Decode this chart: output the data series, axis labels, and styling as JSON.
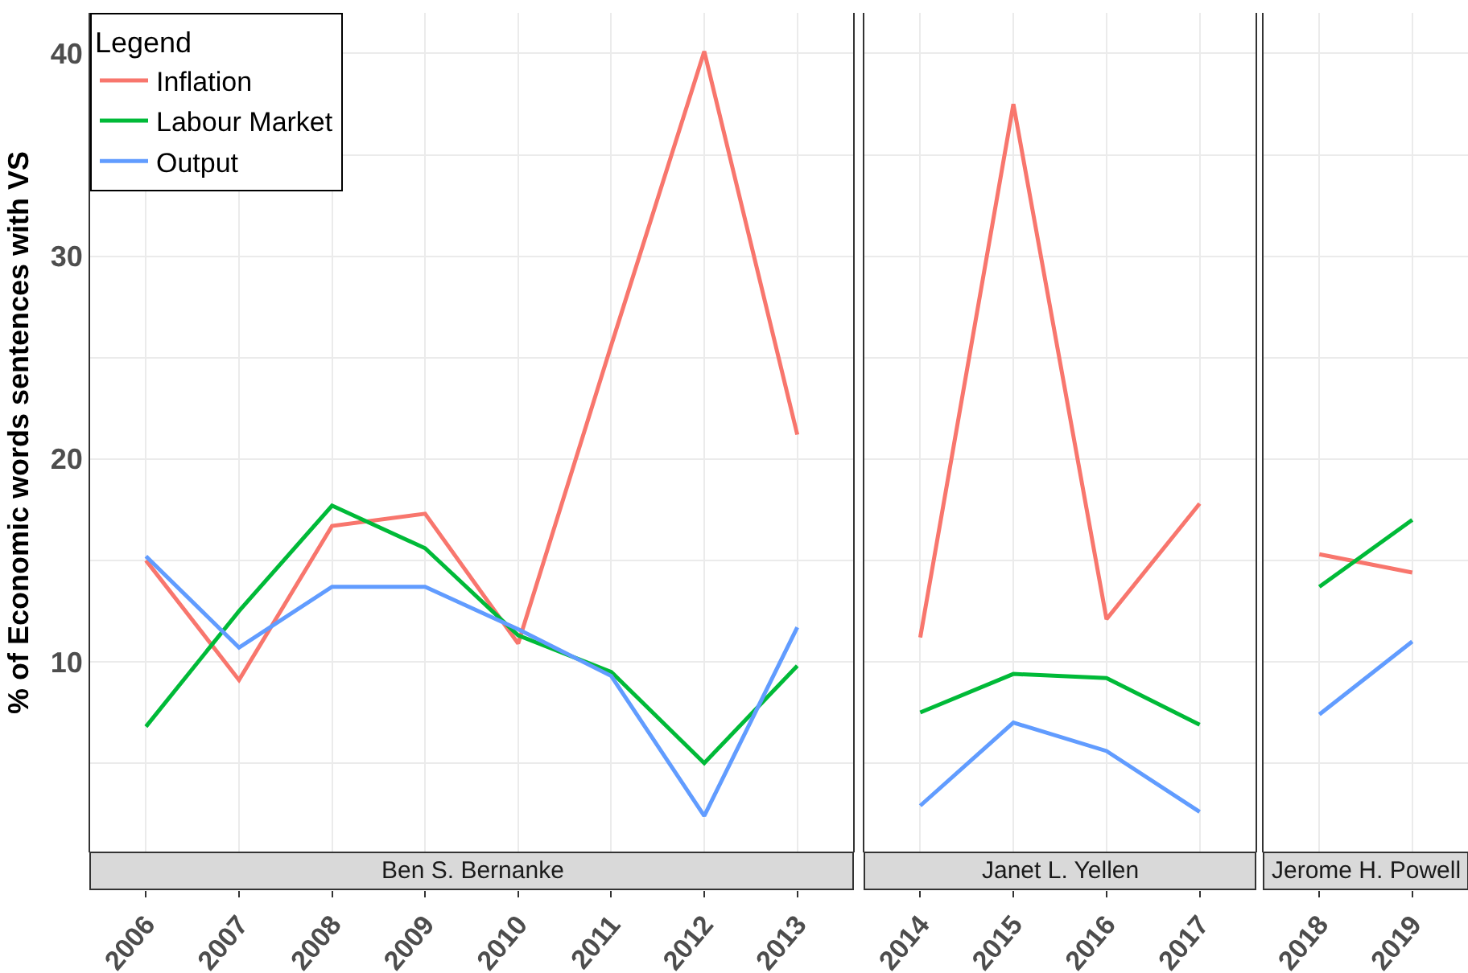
{
  "chart_data": [
    {
      "type": "line",
      "title": "Ben S. Bernanke",
      "ylabel": "% of Economic words sentences with VS",
      "legend_title": "Legend",
      "legend": "top left",
      "grid": true,
      "categories": [
        "2006",
        "2007",
        "2008",
        "2009",
        "2010",
        "2011",
        "2012",
        "2013"
      ],
      "ylim": [
        0.6,
        42
      ],
      "yticks": [
        {
          "value": 5,
          "label": null
        },
        10,
        {
          "value": 15,
          "label": null
        },
        20,
        {
          "value": 25,
          "label": null
        },
        30,
        {
          "value": 35,
          "label": null
        },
        40
      ],
      "series": [
        {
          "name": "Inflation",
          "color": "#f8766d",
          "values": [
            15.0,
            9.1,
            16.7,
            17.3,
            10.9,
            25.6,
            40.1,
            21.2
          ]
        },
        {
          "name": "Labour Market",
          "color": "#00ba38",
          "values": [
            6.8,
            12.5,
            17.7,
            15.6,
            11.3,
            9.5,
            5.0,
            9.8
          ]
        },
        {
          "name": "Output",
          "color": "#619cff",
          "values": [
            15.2,
            10.7,
            13.7,
            13.7,
            11.6,
            9.3,
            2.4,
            11.7
          ]
        }
      ]
    },
    {
      "type": "line",
      "title": "Janet L. Yellen",
      "grid": true,
      "tick_labels": "x",
      "categories": [
        "2014",
        "2015",
        "2016",
        "2017"
      ],
      "ylim": [
        0.6,
        42
      ],
      "yticks": [
        {
          "value": 5,
          "label": null
        },
        {
          "value": 10,
          "label": null
        },
        {
          "value": 15,
          "label": null
        },
        {
          "value": 20,
          "label": null
        },
        {
          "value": 25,
          "label": null
        },
        {
          "value": 30,
          "label": null
        },
        {
          "value": 35,
          "label": null
        },
        {
          "value": 40,
          "label": null
        }
      ],
      "series": [
        {
          "color": "#f8766d",
          "values": [
            11.2,
            37.5,
            12.1,
            17.8
          ]
        },
        {
          "color": "#00ba38",
          "values": [
            7.5,
            9.4,
            9.2,
            6.9
          ]
        },
        {
          "color": "#619cff",
          "values": [
            2.9,
            7.0,
            5.6,
            2.6
          ]
        }
      ]
    },
    {
      "type": "line",
      "title": "Jerome H. Powell",
      "grid": true,
      "tick_labels": "x",
      "categories": [
        "2018",
        "2019"
      ],
      "ylim": [
        0.6,
        42
      ],
      "yticks": [
        {
          "value": 5,
          "label": null
        },
        {
          "value": 10,
          "label": null
        },
        {
          "value": 15,
          "label": null
        },
        {
          "value": 20,
          "label": null
        },
        {
          "value": 25,
          "label": null
        },
        {
          "value": 30,
          "label": null
        },
        {
          "value": 35,
          "label": null
        },
        {
          "value": 40,
          "label": null
        }
      ],
      "series": [
        {
          "color": "#f8766d",
          "values": [
            15.3,
            14.4
          ]
        },
        {
          "color": "#00ba38",
          "values": [
            13.7,
            17.0
          ]
        },
        {
          "color": "#619cff",
          "values": [
            7.4,
            11.0
          ]
        }
      ]
    }
  ]
}
